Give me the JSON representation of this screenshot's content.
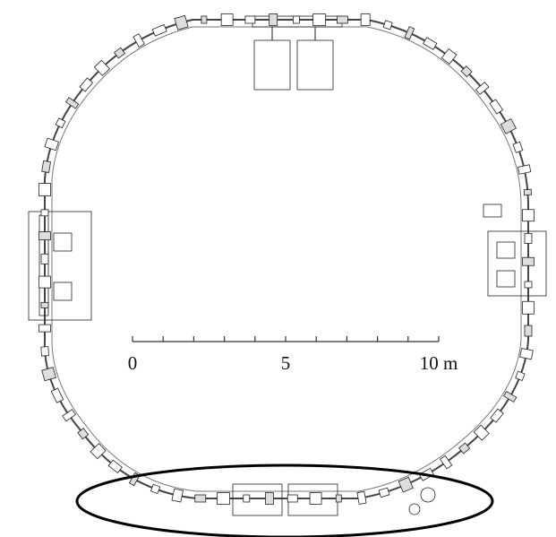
{
  "scale_bar": {
    "lim": [
      0,
      10
    ],
    "ticks": [
      0,
      1,
      2,
      3,
      4,
      5,
      6,
      7,
      8,
      9,
      10
    ],
    "labels": [
      {
        "value": 0,
        "label": "0"
      },
      {
        "value": 5,
        "label": "5"
      },
      {
        "value": 10,
        "label": "10 m"
      }
    ]
  }
}
